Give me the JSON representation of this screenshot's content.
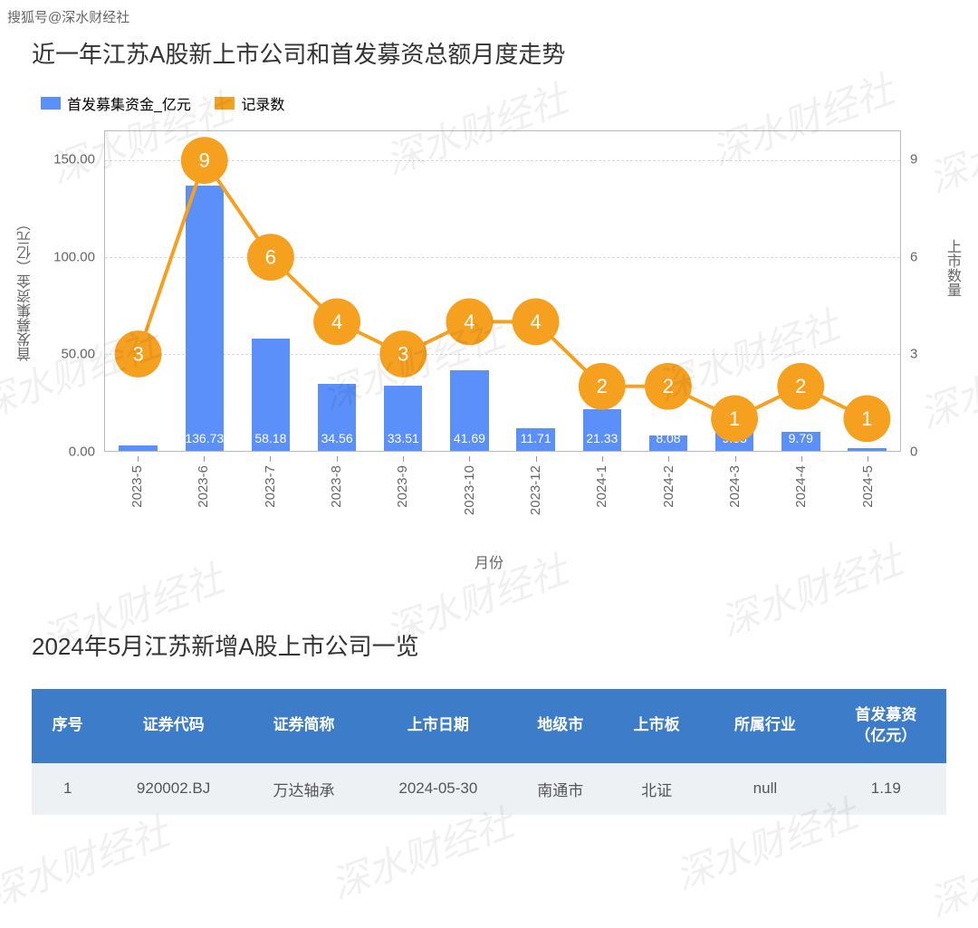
{
  "watermark_tag": "搜狐号@深水财经社",
  "watermark_text": "深水财经社",
  "chart": {
    "title": "近一年江苏A股新上市公司和首发募资总额月度走势",
    "legend": {
      "bar_label": "首发募集资金_亿元",
      "line_label": "记录数"
    },
    "bar_color": "#5b8ff9",
    "line_color": "#f6a020",
    "line_stroke_width": 4,
    "marker_radius": 26,
    "marker_text_color": "#ffffff",
    "marker_fontsize": 22,
    "bar_label_color": "#ffffff",
    "bar_label_fontsize": 14,
    "grid_color": "#d8d8d8",
    "border_color": "#bbbbbb",
    "background_color": "#ffffff",
    "y_left": {
      "label": "首发募集资金（亿元）",
      "min": 0,
      "max": 165,
      "ticks": [
        0.0,
        50.0,
        100.0,
        150.0
      ]
    },
    "y_right": {
      "label": "上市数量",
      "min": 0,
      "max": 9.9,
      "ticks": [
        0,
        3,
        6,
        9
      ]
    },
    "x_title": "月份",
    "categories": [
      "2023-5",
      "2023-6",
      "2023-7",
      "2023-8",
      "2023-9",
      "2023-10",
      "2023-12",
      "2024-1",
      "2024-2",
      "2024-3",
      "2024-4",
      "2024-5"
    ],
    "bar_values": [
      2.74,
      136.73,
      58.18,
      34.56,
      33.51,
      41.69,
      11.71,
      21.33,
      8.08,
      9.33,
      9.79,
      1.19
    ],
    "bar_value_labels": [
      "2.74",
      "136.73",
      "58.18",
      "34.56",
      "33.51",
      "41.69",
      "11.71",
      "21.33",
      "8.08",
      "9.33",
      "9.79",
      ""
    ],
    "line_values": [
      3,
      9,
      6,
      4,
      3,
      4,
      4,
      2,
      2,
      1,
      2,
      1
    ]
  },
  "table": {
    "title": "2024年5月江苏新增A股上市公司一览",
    "header_bg": "#3d7cc9",
    "header_fg": "#ffffff",
    "row_bg": "#eef1f4",
    "row_fg": "#555555",
    "columns": [
      "序号",
      "证券代码",
      "证券简称",
      "上市日期",
      "地级市",
      "上市板",
      "所属行业",
      "首发募资\n（亿元）"
    ],
    "rows": [
      [
        "1",
        "920002.BJ",
        "万达轴承",
        "2024-05-30",
        "南通市",
        "北证",
        "null",
        "1.19"
      ]
    ]
  }
}
